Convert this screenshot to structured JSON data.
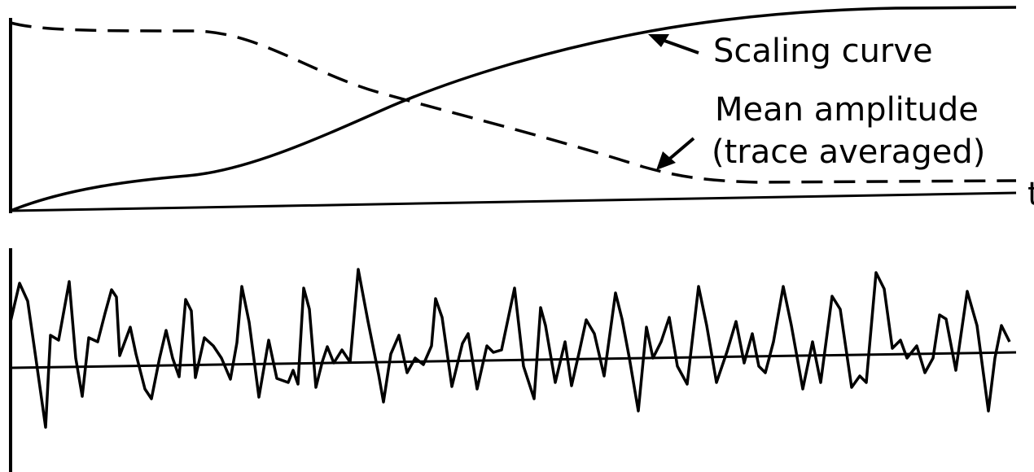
{
  "figure": {
    "top_panel": {
      "scaling_curve_label": "Scaling curve",
      "mean_amplitude_label_line1": "Mean amplitude",
      "mean_amplitude_label_line2": "(trace averaged)",
      "axis_label": "t"
    },
    "bottom_panel": {
      "description_visible": ""
    },
    "colors": {
      "ink": "#000000",
      "background": "#ffffff"
    }
  }
}
